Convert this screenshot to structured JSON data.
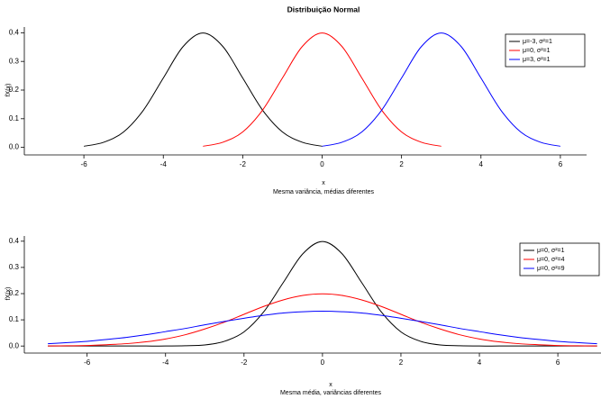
{
  "chart_data": [
    {
      "type": "line",
      "title": "Distribuição Normal",
      "xlabel": "x",
      "subtitle": "Mesma variância, médias diferentes",
      "ylabel": "fX(x)",
      "xlim": [
        -7.5,
        6.66
      ],
      "ylim": [
        -0.02,
        0.42
      ],
      "xticks": [
        -6,
        -4,
        -2,
        0,
        2,
        4,
        6
      ],
      "yticks": [
        {
          "value": 0,
          "label": "0.0"
        },
        0.1,
        0.2,
        0.3,
        0.4
      ],
      "legend": "top-right",
      "series": [
        {
          "name": "μ=-3, σ²=1",
          "color": "#000000",
          "x": [
            -6,
            -5.5,
            -5,
            -4.5,
            -4,
            -3.5,
            -3,
            -2.5,
            -2,
            -1.5,
            -1,
            -0.5,
            0
          ],
          "values": [
            0.004,
            0.018,
            0.054,
            0.13,
            0.242,
            0.352,
            0.399,
            0.352,
            0.242,
            0.13,
            0.054,
            0.018,
            0.004
          ]
        },
        {
          "name": "μ=0, σ²=1",
          "color": "#ff0000",
          "x": [
            -3,
            -2.5,
            -2,
            -1.5,
            -1,
            -0.5,
            0,
            0.5,
            1,
            1.5,
            2,
            2.5,
            3
          ],
          "values": [
            0.004,
            0.018,
            0.054,
            0.13,
            0.242,
            0.352,
            0.399,
            0.352,
            0.242,
            0.13,
            0.054,
            0.018,
            0.004
          ]
        },
        {
          "name": "μ=3, σ²=1",
          "color": "#0000ff",
          "x": [
            0,
            0.5,
            1,
            1.5,
            2,
            2.5,
            3,
            3.5,
            4,
            4.5,
            5,
            5.5,
            6
          ],
          "values": [
            0.004,
            0.018,
            0.054,
            0.13,
            0.242,
            0.352,
            0.399,
            0.352,
            0.242,
            0.13,
            0.054,
            0.018,
            0.004
          ]
        }
      ]
    },
    {
      "type": "line",
      "xlabel": "x",
      "subtitle": "Mesma média, variâncias diferentes",
      "ylabel": "fX(x)",
      "xlim": [
        -7.6,
        7.1
      ],
      "ylim": [
        -0.02,
        0.42
      ],
      "xticks": [
        -6,
        -4,
        -2,
        0,
        2,
        4,
        6
      ],
      "yticks": [
        {
          "value": 0,
          "label": "0.0"
        },
        0.1,
        0.2,
        0.3,
        0.4
      ],
      "legend": "top-right",
      "x": [
        -7,
        -6.5,
        -6,
        -5.5,
        -5,
        -4.5,
        -4,
        -3.5,
        -3,
        -2.5,
        -2,
        -1.5,
        -1,
        -0.5,
        0,
        0.5,
        1,
        1.5,
        2,
        2.5,
        3,
        3.5,
        4,
        4.5,
        5,
        5.5,
        6,
        6.5,
        7
      ],
      "series": [
        {
          "name": "μ=0, σ²=1",
          "color": "#000000",
          "values": [
            0,
            0,
            0,
            0,
            0,
            0,
            0,
            0.001,
            0.004,
            0.018,
            0.054,
            0.13,
            0.242,
            0.352,
            0.399,
            0.352,
            0.242,
            0.13,
            0.054,
            0.018,
            0.004,
            0.001,
            0,
            0,
            0,
            0,
            0,
            0,
            0
          ]
        },
        {
          "name": "μ=0, σ²=4",
          "color": "#ff0000",
          "values": [
            0,
            0.001,
            0.002,
            0.005,
            0.009,
            0.016,
            0.027,
            0.043,
            0.065,
            0.091,
            0.121,
            0.151,
            0.176,
            0.193,
            0.199,
            0.193,
            0.176,
            0.151,
            0.121,
            0.091,
            0.065,
            0.043,
            0.027,
            0.016,
            0.009,
            0.005,
            0.002,
            0.001,
            0
          ]
        },
        {
          "name": "μ=0, σ²=9",
          "color": "#0000ff",
          "values": [
            0.009,
            0.013,
            0.018,
            0.025,
            0.033,
            0.043,
            0.055,
            0.067,
            0.081,
            0.094,
            0.106,
            0.117,
            0.126,
            0.131,
            0.133,
            0.131,
            0.126,
            0.117,
            0.106,
            0.094,
            0.081,
            0.067,
            0.055,
            0.043,
            0.033,
            0.025,
            0.018,
            0.013,
            0.009
          ]
        }
      ]
    }
  ]
}
